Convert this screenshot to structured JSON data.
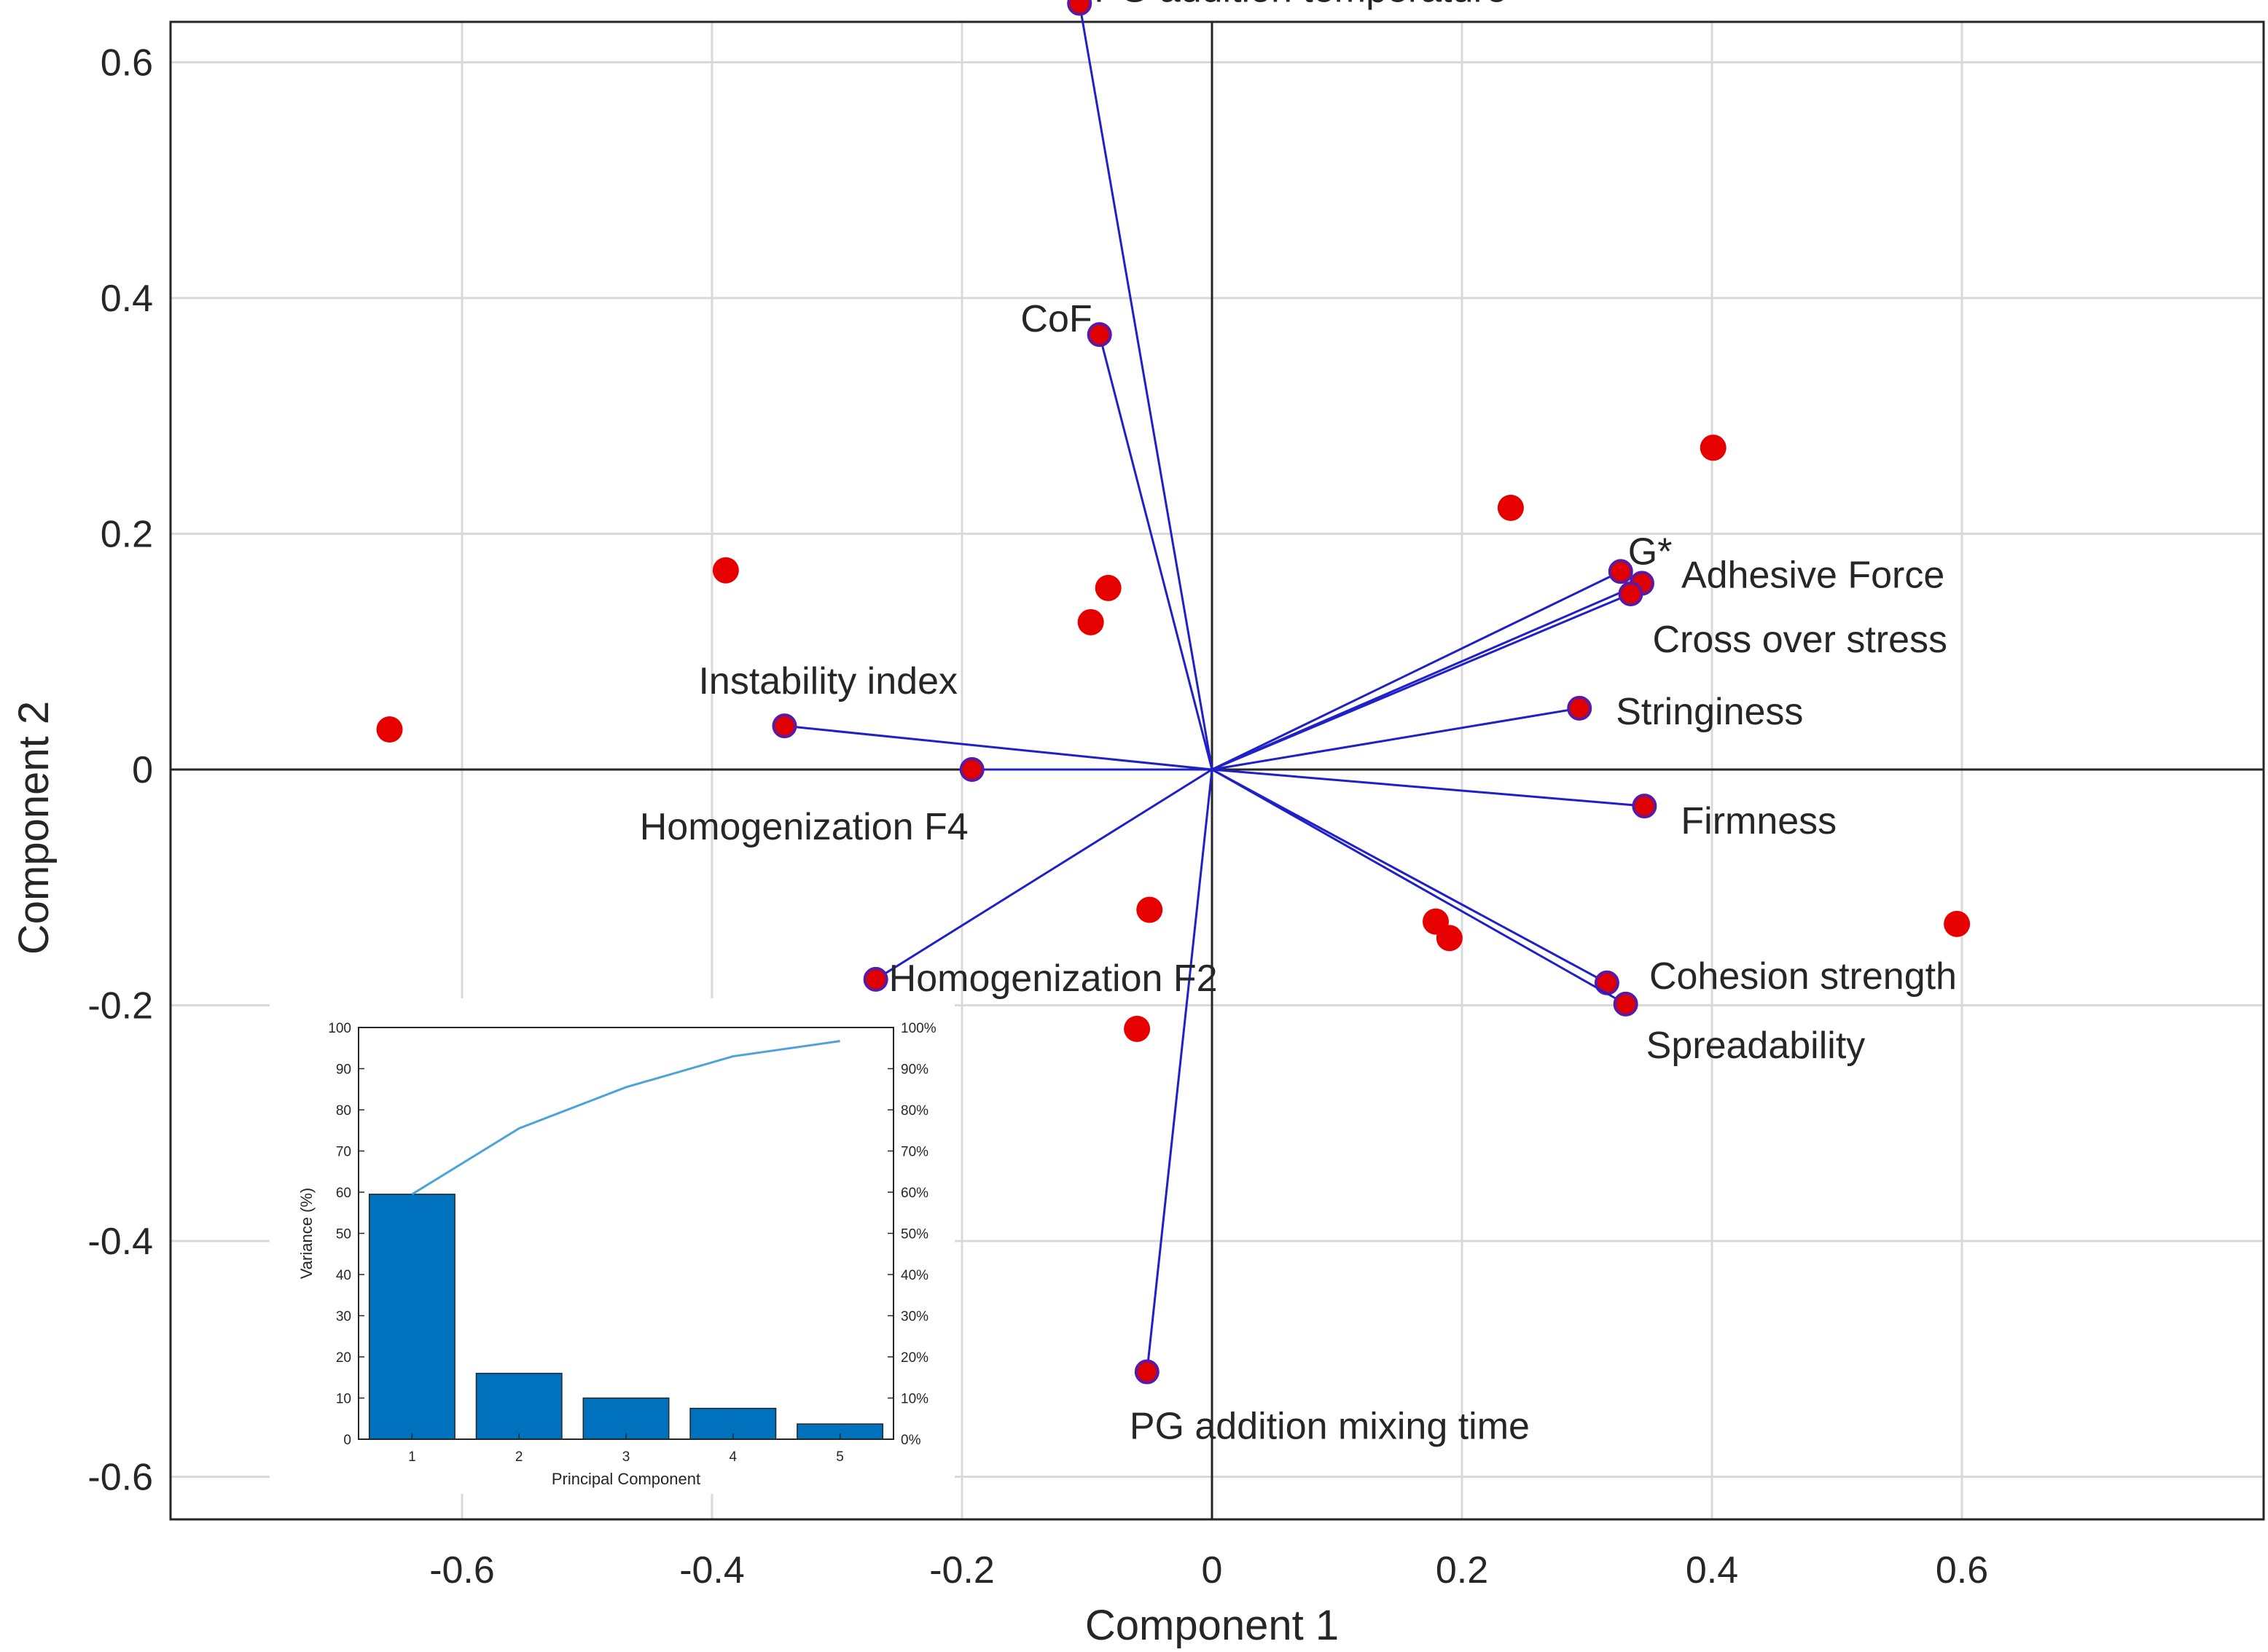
{
  "chart_data": [
    {
      "type": "biplot",
      "xlabel": "Component 1",
      "ylabel": "Component 2",
      "xlim": [
        -0.7,
        0.7
      ],
      "ylim": [
        -0.7,
        0.7
      ],
      "grid": true,
      "x_ticks": [
        {
          "value": -0.6,
          "label": "-0.6"
        },
        {
          "value": -0.4,
          "label": "-0.4"
        },
        {
          "value": -0.2,
          "label": "-0.2"
        },
        {
          "value": 0,
          "label": "0"
        },
        {
          "value": 0.2,
          "label": "0.2"
        },
        {
          "value": 0.4,
          "label": "0.4"
        },
        {
          "value": 0.6,
          "label": "0.6"
        }
      ],
      "y_ticks": [
        {
          "value": 0.6,
          "label": "0.6"
        },
        {
          "value": 0.4,
          "label": "0.4"
        },
        {
          "value": 0.2,
          "label": "0.2"
        },
        {
          "value": 0,
          "label": "0"
        },
        {
          "value": -0.2,
          "label": "-0.2"
        },
        {
          "value": -0.4,
          "label": "-0.4"
        },
        {
          "value": -0.6,
          "label": "-0.6"
        }
      ],
      "loadings": [
        {
          "name": "PG addition temperature",
          "x": -0.106,
          "y": 0.65,
          "anchor": "start"
        },
        {
          "name": "CoF",
          "x": -0.09,
          "y": 0.369,
          "anchor": "end"
        },
        {
          "name": "G*",
          "x": 0.327,
          "y": 0.168,
          "anchor": "start"
        },
        {
          "name": "Adhesive Force",
          "x": 0.344,
          "y": 0.158,
          "anchor": "start"
        },
        {
          "name": "Cross over stress",
          "x": 0.335,
          "y": 0.149,
          "anchor": "start"
        },
        {
          "name": "Stringiness",
          "x": 0.294,
          "y": 0.052,
          "anchor": "start"
        },
        {
          "name": "Instability index",
          "x": -0.342,
          "y": 0.037,
          "anchor": "start"
        },
        {
          "name": "Homogenization F4",
          "x": -0.192,
          "y": 0.0,
          "anchor": "start"
        },
        {
          "name": "Firmness",
          "x": 0.346,
          "y": -0.031,
          "anchor": "start"
        },
        {
          "name": "Homogenization F2",
          "x": -0.269,
          "y": -0.178,
          "anchor": "start"
        },
        {
          "name": "Cohesion strength",
          "x": 0.316,
          "y": -0.181,
          "anchor": "start"
        },
        {
          "name": "Spreadability",
          "x": 0.331,
          "y": -0.199,
          "anchor": "start"
        },
        {
          "name": "PG addition mixing time",
          "x": -0.052,
          "y": -0.511,
          "anchor": "start"
        }
      ],
      "scores": [
        {
          "x": -0.658,
          "y": 0.034
        },
        {
          "x": -0.389,
          "y": 0.169
        },
        {
          "x": -0.097,
          "y": 0.125
        },
        {
          "x": -0.083,
          "y": 0.154
        },
        {
          "x": -0.05,
          "y": -0.119
        },
        {
          "x": -0.06,
          "y": -0.22
        },
        {
          "x": 0.179,
          "y": -0.129
        },
        {
          "x": 0.19,
          "y": -0.143
        },
        {
          "x": 0.239,
          "y": 0.222
        },
        {
          "x": 0.401,
          "y": 0.273
        },
        {
          "x": 0.596,
          "y": -0.131
        }
      ]
    },
    {
      "type": "pareto",
      "title": "",
      "xlabel": "Principal Component",
      "ylabel": "Variance (%)",
      "categories": [
        "1",
        "2",
        "3",
        "4",
        "5"
      ],
      "values": [
        59.5,
        16,
        10,
        7.5,
        3.7
      ],
      "cumulative_pct": [
        59.5,
        75.5,
        85.5,
        93,
        96.7
      ],
      "ylim": [
        0,
        100
      ],
      "y_ticks": [
        "0",
        "10",
        "20",
        "30",
        "40",
        "50",
        "60",
        "70",
        "80",
        "90",
        "100"
      ],
      "y2_ticks": [
        "0%",
        "10%",
        "20%",
        "30%",
        "40%",
        "50%",
        "60%",
        "70%",
        "80%",
        "90%",
        "100%"
      ],
      "bar_color": "#0072BD",
      "line_color": "#4DA3D9"
    }
  ]
}
